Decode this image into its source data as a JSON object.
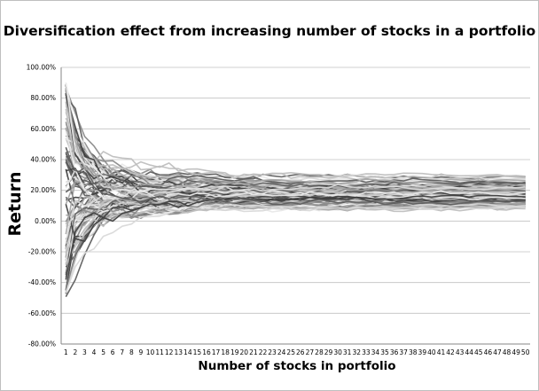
{
  "chart_data": {
    "type": "line",
    "title": "Diversification effect from increasing number of stocks in a portfolio",
    "xlabel": "Number of stocks in portfolio",
    "ylabel": "Return",
    "y_ticks": [
      "100.00%",
      "80.00%",
      "60.00%",
      "40.00%",
      "20.00%",
      "0.00%",
      "-20.00%",
      "-40.00%",
      "-60.00%",
      "-80.00%"
    ],
    "ylim": [
      -80,
      100
    ],
    "x": [
      1,
      2,
      3,
      4,
      5,
      6,
      7,
      8,
      9,
      10,
      11,
      12,
      13,
      14,
      15,
      16,
      17,
      18,
      19,
      20,
      21,
      22,
      23,
      24,
      25,
      26,
      27,
      28,
      29,
      30,
      31,
      32,
      33,
      34,
      35,
      36,
      37,
      38,
      39,
      40,
      41,
      42,
      43,
      44,
      45,
      46,
      47,
      48,
      49,
      50
    ],
    "grid": "horizontal",
    "legend": "none",
    "series_count": 100,
    "series_mean": 17.5,
    "series_dispersion": [
      0.38,
      0.24,
      0.17,
      0.11,
      0.06
    ],
    "series_start_range": [
      -54,
      92
    ],
    "series_end_range": [
      9,
      28
    ],
    "colors": {
      "dark_series": "#404040",
      "mid_series": "#8c8c8c",
      "light_series": "#d9d9d9",
      "gridline": "#c0c0c0",
      "axis": "#868686"
    }
  }
}
